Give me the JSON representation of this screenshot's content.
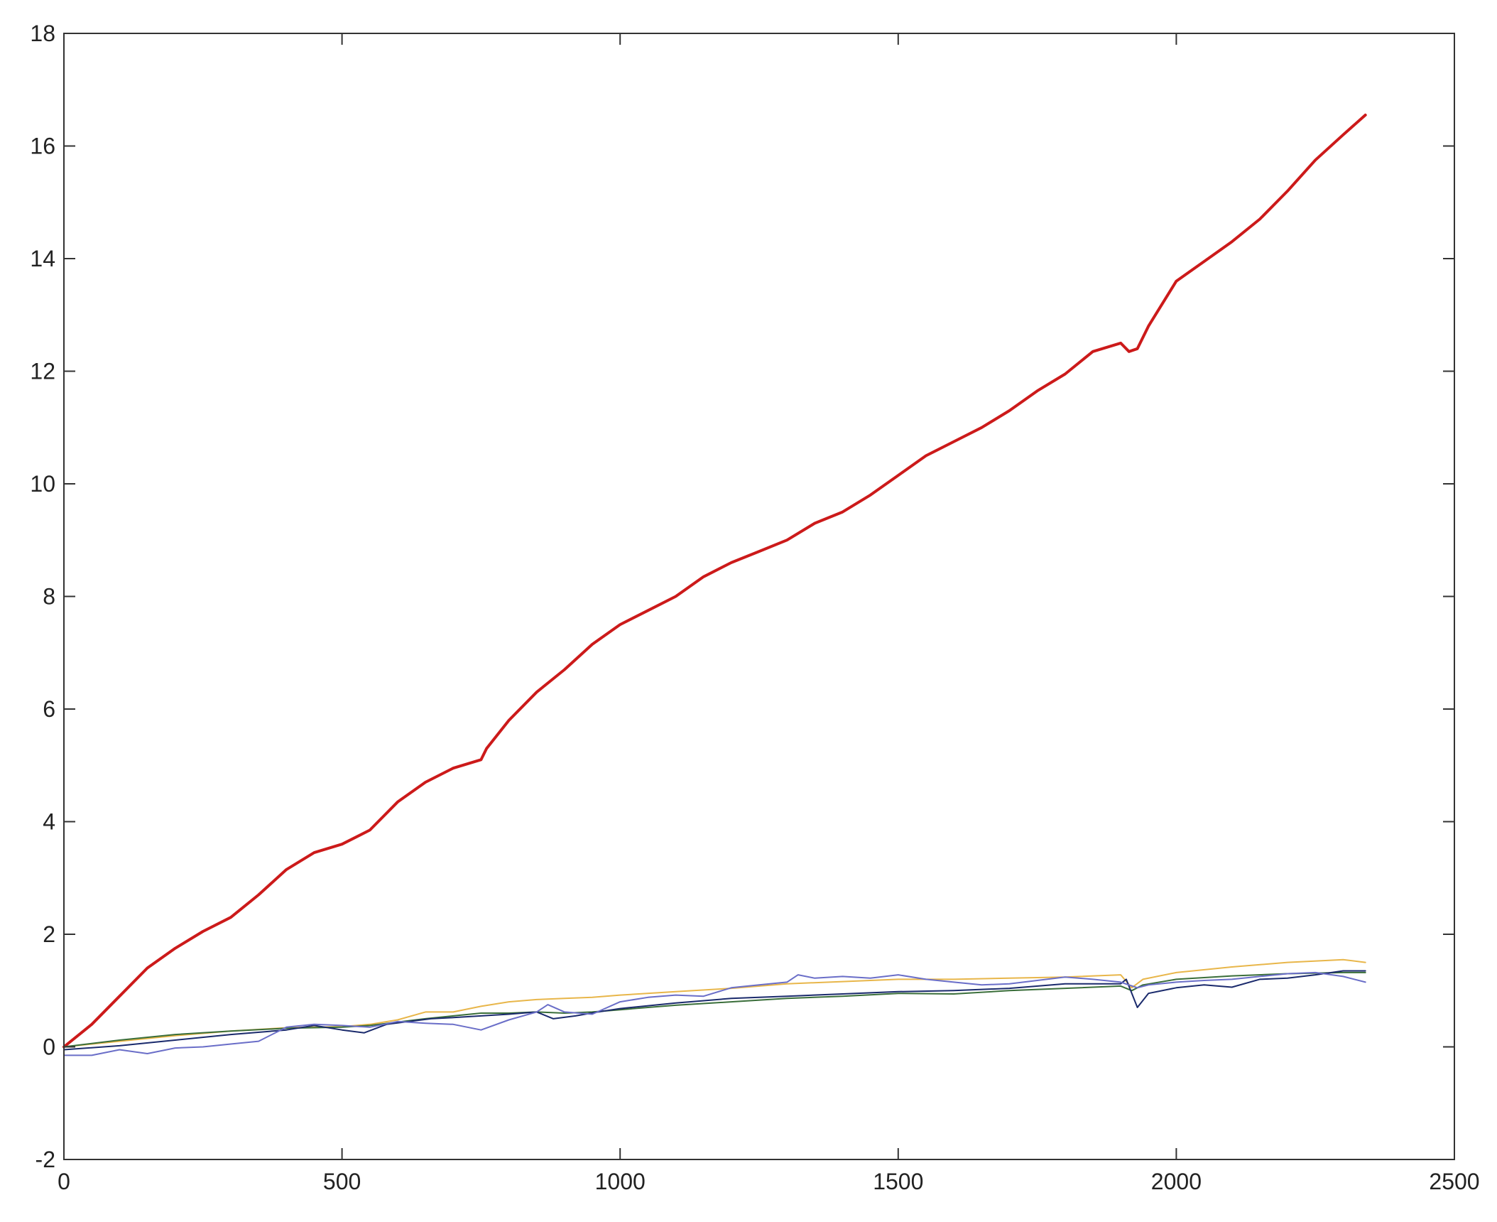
{
  "chart_data": {
    "type": "line",
    "title": "",
    "xlabel": "",
    "ylabel": "",
    "xlim": [
      0,
      2500
    ],
    "ylim": [
      -2,
      18
    ],
    "xticks": [
      0,
      500,
      1000,
      1500,
      2000,
      2500
    ],
    "yticks": [
      -2,
      0,
      2,
      4,
      6,
      8,
      10,
      12,
      14,
      16,
      18
    ],
    "grid": false,
    "legend": "none",
    "series": [
      {
        "color": "#cc1a1a",
        "x": [
          0,
          50,
          100,
          150,
          200,
          250,
          300,
          350,
          400,
          450,
          500,
          550,
          600,
          650,
          700,
          750,
          760,
          800,
          850,
          900,
          950,
          1000,
          1050,
          1100,
          1150,
          1200,
          1250,
          1300,
          1350,
          1400,
          1450,
          1500,
          1550,
          1600,
          1650,
          1700,
          1750,
          1800,
          1850,
          1900,
          1915,
          1930,
          1950,
          2000,
          2050,
          2100,
          2150,
          2200,
          2250,
          2300,
          2340
        ],
        "y": [
          0.0,
          0.4,
          0.9,
          1.4,
          1.75,
          2.05,
          2.3,
          2.7,
          3.15,
          3.45,
          3.6,
          3.85,
          4.35,
          4.7,
          4.95,
          5.1,
          5.3,
          5.8,
          6.3,
          6.7,
          7.15,
          7.5,
          7.75,
          8.0,
          8.35,
          8.6,
          8.8,
          9.0,
          9.3,
          9.5,
          9.8,
          10.15,
          10.5,
          10.75,
          11.0,
          11.3,
          11.65,
          11.95,
          12.35,
          12.5,
          12.35,
          12.4,
          12.8,
          13.6,
          13.95,
          14.3,
          14.7,
          15.2,
          15.75,
          16.2,
          16.55
        ]
      },
      {
        "color": "#e8b64a",
        "x": [
          0,
          100,
          200,
          300,
          400,
          500,
          550,
          600,
          650,
          700,
          750,
          800,
          850,
          900,
          950,
          1000,
          1100,
          1200,
          1300,
          1400,
          1500,
          1600,
          1700,
          1800,
          1900,
          1920,
          1940,
          2000,
          2100,
          2200,
          2300,
          2340
        ],
        "y": [
          0.0,
          0.1,
          0.2,
          0.28,
          0.34,
          0.36,
          0.4,
          0.48,
          0.62,
          0.62,
          0.72,
          0.8,
          0.84,
          0.86,
          0.88,
          0.92,
          0.98,
          1.04,
          1.12,
          1.16,
          1.2,
          1.2,
          1.22,
          1.24,
          1.28,
          1.05,
          1.2,
          1.32,
          1.42,
          1.5,
          1.55,
          1.5
        ]
      },
      {
        "color": "#3a6e3a",
        "x": [
          0,
          100,
          200,
          300,
          400,
          500,
          550,
          600,
          650,
          700,
          750,
          800,
          850,
          900,
          950,
          1000,
          1100,
          1200,
          1300,
          1400,
          1500,
          1600,
          1700,
          1800,
          1900,
          1920,
          1940,
          2000,
          2100,
          2200,
          2300,
          2340
        ],
        "y": [
          0.0,
          0.12,
          0.22,
          0.28,
          0.33,
          0.35,
          0.38,
          0.44,
          0.5,
          0.55,
          0.6,
          0.6,
          0.62,
          0.6,
          0.62,
          0.66,
          0.74,
          0.8,
          0.86,
          0.9,
          0.95,
          0.94,
          1.0,
          1.04,
          1.08,
          1.0,
          1.1,
          1.2,
          1.26,
          1.3,
          1.32,
          1.32
        ]
      },
      {
        "color": "#1a2a6c",
        "x": [
          0,
          100,
          200,
          300,
          400,
          450,
          500,
          540,
          580,
          620,
          660,
          700,
          750,
          800,
          850,
          880,
          920,
          960,
          1000,
          1100,
          1200,
          1300,
          1400,
          1500,
          1600,
          1700,
          1800,
          1900,
          1910,
          1930,
          1950,
          2000,
          2050,
          2100,
          2150,
          2200,
          2250,
          2300,
          2340
        ],
        "y": [
          -0.05,
          0.02,
          0.12,
          0.22,
          0.3,
          0.38,
          0.3,
          0.25,
          0.4,
          0.45,
          0.5,
          0.52,
          0.55,
          0.58,
          0.62,
          0.5,
          0.55,
          0.62,
          0.68,
          0.78,
          0.86,
          0.9,
          0.94,
          0.98,
          1.0,
          1.04,
          1.12,
          1.12,
          1.2,
          0.7,
          0.95,
          1.05,
          1.1,
          1.06,
          1.2,
          1.22,
          1.28,
          1.35,
          1.35
        ]
      },
      {
        "color": "#6a6ec8",
        "x": [
          0,
          50,
          100,
          150,
          200,
          250,
          300,
          350,
          400,
          450,
          500,
          550,
          600,
          650,
          700,
          750,
          800,
          850,
          870,
          900,
          950,
          1000,
          1050,
          1100,
          1150,
          1200,
          1250,
          1300,
          1320,
          1350,
          1400,
          1450,
          1500,
          1550,
          1600,
          1650,
          1700,
          1750,
          1800,
          1850,
          1900,
          1930,
          1950,
          2000,
          2050,
          2100,
          2150,
          2200,
          2250,
          2300,
          2340
        ],
        "y": [
          -0.15,
          -0.15,
          -0.05,
          -0.12,
          -0.02,
          0.0,
          0.05,
          0.1,
          0.35,
          0.4,
          0.38,
          0.35,
          0.45,
          0.42,
          0.4,
          0.3,
          0.48,
          0.62,
          0.75,
          0.62,
          0.58,
          0.8,
          0.88,
          0.92,
          0.9,
          1.05,
          1.1,
          1.15,
          1.28,
          1.22,
          1.25,
          1.22,
          1.28,
          1.2,
          1.15,
          1.1,
          1.12,
          1.18,
          1.24,
          1.2,
          1.15,
          1.05,
          1.1,
          1.15,
          1.18,
          1.2,
          1.25,
          1.3,
          1.32,
          1.25,
          1.15
        ]
      }
    ]
  }
}
